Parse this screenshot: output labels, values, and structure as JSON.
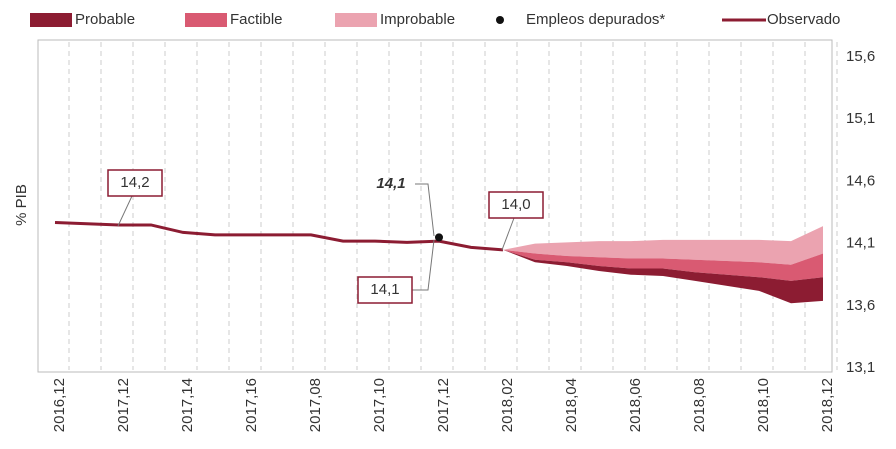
{
  "chart_data": {
    "type": "fan",
    "ylabel": "% PIB",
    "categories": [
      "2016,12",
      null,
      "2017,12",
      null,
      "2017,14",
      null,
      "2017,16",
      null,
      "2017,08",
      null,
      "2017,10",
      null,
      "2017,12",
      null,
      "2018,02",
      null,
      "2018,04",
      null,
      "2018,06",
      null,
      "2018,08",
      null,
      "2018,10",
      null,
      "2018,12"
    ],
    "ylim": [
      13.1,
      15.6
    ],
    "yticks": [
      {
        "value": 13.1,
        "label": "13,1"
      },
      {
        "value": 13.6,
        "label": "13,6"
      },
      {
        "value": 14.1,
        "label": "14,1"
      },
      {
        "value": 14.6,
        "label": "14,6"
      },
      {
        "value": 15.1,
        "label": "15,1"
      },
      {
        "value": 15.6,
        "label": "15,6"
      }
    ],
    "xgrid": true,
    "series": [
      {
        "name": "Probable",
        "style": "band",
        "color": "#8c1c32",
        "upper": [
          null,
          null,
          null,
          null,
          null,
          null,
          null,
          null,
          null,
          null,
          null,
          null,
          null,
          null,
          14.05,
          13.97,
          13.95,
          13.92,
          13.9,
          13.9,
          13.87,
          13.85,
          13.83,
          13.8,
          13.83
        ],
        "lower": [
          null,
          null,
          null,
          null,
          null,
          null,
          null,
          null,
          null,
          null,
          null,
          null,
          null,
          null,
          14.05,
          13.95,
          13.92,
          13.88,
          13.85,
          13.84,
          13.8,
          13.76,
          13.72,
          13.62,
          13.64
        ]
      },
      {
        "name": "Factible",
        "style": "band",
        "color": "#d95a72",
        "upper": [
          null,
          null,
          null,
          null,
          null,
          null,
          null,
          null,
          null,
          null,
          null,
          null,
          null,
          null,
          14.05,
          14.02,
          14.0,
          13.99,
          13.98,
          13.98,
          13.97,
          13.96,
          13.95,
          13.93,
          14.02
        ],
        "lower": [
          null,
          null,
          null,
          null,
          null,
          null,
          null,
          null,
          null,
          null,
          null,
          null,
          null,
          null,
          14.05,
          13.97,
          13.95,
          13.92,
          13.9,
          13.9,
          13.87,
          13.85,
          13.83,
          13.8,
          13.83
        ]
      },
      {
        "name": "Improbable",
        "style": "band",
        "color": "#eba3b0",
        "upper": [
          null,
          null,
          null,
          null,
          null,
          null,
          null,
          null,
          null,
          null,
          null,
          null,
          null,
          null,
          14.05,
          14.1,
          14.11,
          14.12,
          14.12,
          14.13,
          14.13,
          14.13,
          14.13,
          14.12,
          14.24
        ],
        "lower": [
          null,
          null,
          null,
          null,
          null,
          null,
          null,
          null,
          null,
          null,
          null,
          null,
          null,
          null,
          14.05,
          14.02,
          14.0,
          13.99,
          13.98,
          13.98,
          13.97,
          13.96,
          13.95,
          13.93,
          14.02
        ]
      },
      {
        "name": "Empleos depurados*",
        "style": "point",
        "color": "#111111",
        "values": [
          null,
          null,
          null,
          null,
          null,
          null,
          null,
          null,
          null,
          null,
          null,
          null,
          14.15,
          null,
          null,
          null,
          null,
          null,
          null,
          null,
          null,
          null,
          null,
          null,
          null
        ]
      },
      {
        "name": "Observado",
        "style": "line",
        "color": "#8c1c32",
        "values": [
          14.27,
          14.26,
          14.25,
          14.25,
          14.19,
          14.17,
          14.17,
          14.17,
          14.17,
          14.12,
          14.12,
          14.11,
          14.12,
          14.07,
          14.05,
          null,
          null,
          null,
          null,
          null,
          null,
          null,
          null,
          null,
          null
        ]
      }
    ],
    "annotations": [
      {
        "text": "14,2"
      },
      {
        "text": "14,1"
      },
      {
        "text": "14,1"
      },
      {
        "text": "14,0"
      }
    ]
  }
}
